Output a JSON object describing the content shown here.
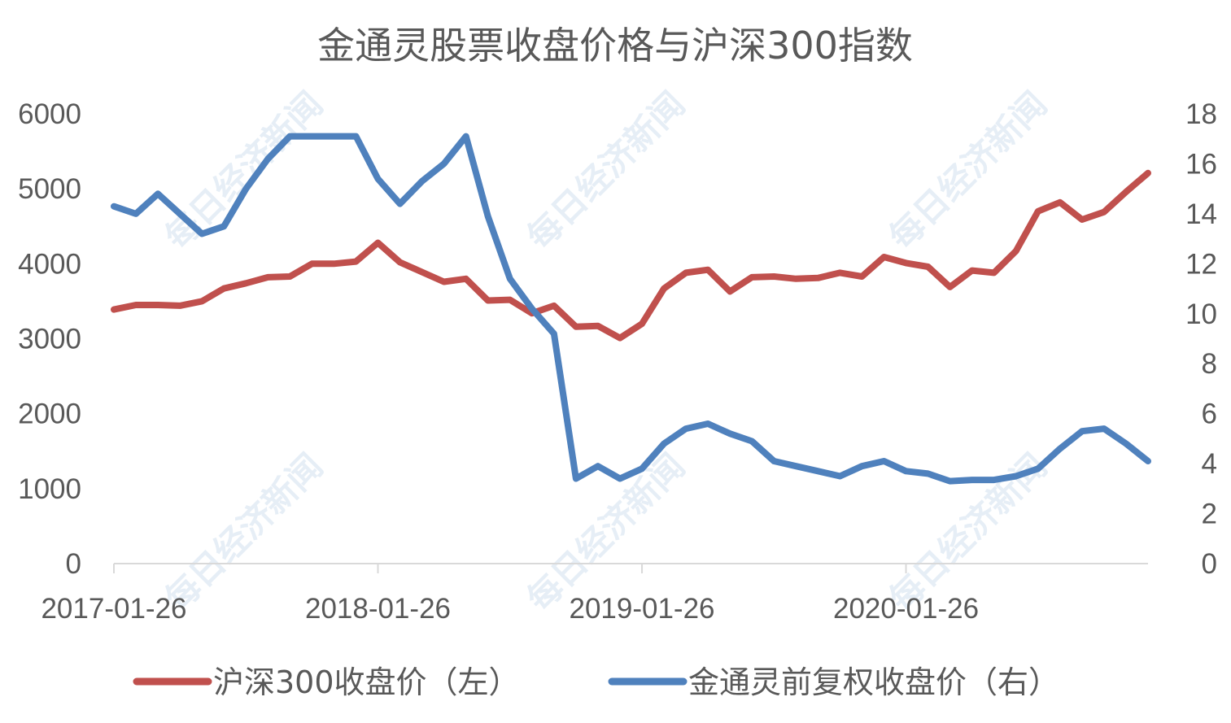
{
  "chart_data": {
    "type": "line",
    "title": "金通灵股票收盘价格与沪深300指数",
    "x": [
      "2017-01-26",
      "2017-02-26",
      "2017-03-26",
      "2017-04-26",
      "2017-05-26",
      "2017-06-26",
      "2017-07-26",
      "2017-08-26",
      "2017-09-26",
      "2017-10-26",
      "2017-11-26",
      "2017-12-26",
      "2018-01-26",
      "2018-02-26",
      "2018-03-26",
      "2018-04-26",
      "2018-05-26",
      "2018-06-26",
      "2018-07-26",
      "2018-08-26",
      "2018-09-26",
      "2018-10-26",
      "2018-11-26",
      "2018-12-26",
      "2019-01-26",
      "2019-02-26",
      "2019-03-26",
      "2019-04-26",
      "2019-05-26",
      "2019-06-26",
      "2019-07-26",
      "2019-08-26",
      "2019-09-26",
      "2019-10-26",
      "2019-11-26",
      "2019-12-26",
      "2020-01-26",
      "2020-02-26",
      "2020-03-26",
      "2020-04-26",
      "2020-05-26",
      "2020-06-26",
      "2020-07-26",
      "2020-08-26",
      "2020-09-26",
      "2020-10-26",
      "2020-11-26",
      "2020-12-26"
    ],
    "x_ticks": [
      "2017-01-26",
      "2018-01-26",
      "2019-01-26",
      "2020-01-26"
    ],
    "y_left_ticks": [
      "0",
      "1000",
      "2000",
      "3000",
      "4000",
      "5000",
      "6000"
    ],
    "y_right_ticks": [
      "0",
      "2",
      "4",
      "6",
      "8",
      "10",
      "12",
      "14",
      "16",
      "18"
    ],
    "ylim_left": [
      0,
      6000
    ],
    "ylim_right": [
      0,
      18
    ],
    "grid": false,
    "legend_position": "bottom",
    "series": [
      {
        "name": "沪深300收盘价（左）",
        "axis": "left",
        "color": "#c0504d",
        "values": [
          3390,
          3450,
          3450,
          3440,
          3500,
          3670,
          3740,
          3820,
          3830,
          4000,
          4000,
          4030,
          4280,
          4020,
          3890,
          3760,
          3800,
          3510,
          3520,
          3340,
          3440,
          3160,
          3170,
          3010,
          3200,
          3670,
          3880,
          3920,
          3630,
          3820,
          3830,
          3800,
          3810,
          3880,
          3830,
          4090,
          4010,
          3960,
          3690,
          3910,
          3880,
          4170,
          4700,
          4820,
          4590,
          4690,
          4960,
          5210
        ]
      },
      {
        "name": "金通灵前复权收盘价（右）",
        "axis": "right",
        "color": "#4f81bd",
        "values": [
          14.3,
          14.0,
          14.8,
          14.0,
          13.2,
          13.5,
          15.0,
          16.2,
          17.1,
          17.1,
          17.1,
          17.1,
          15.4,
          14.4,
          15.3,
          16.0,
          17.1,
          13.9,
          11.4,
          10.2,
          9.2,
          3.4,
          3.9,
          3.4,
          3.8,
          4.8,
          5.4,
          5.6,
          5.2,
          4.9,
          4.1,
          3.9,
          3.7,
          3.5,
          3.9,
          4.1,
          3.7,
          3.6,
          3.3,
          3.35,
          3.35,
          3.5,
          3.8,
          4.6,
          5.3,
          5.4,
          4.8,
          4.1
        ]
      }
    ]
  },
  "watermark": "每日经济新闻"
}
